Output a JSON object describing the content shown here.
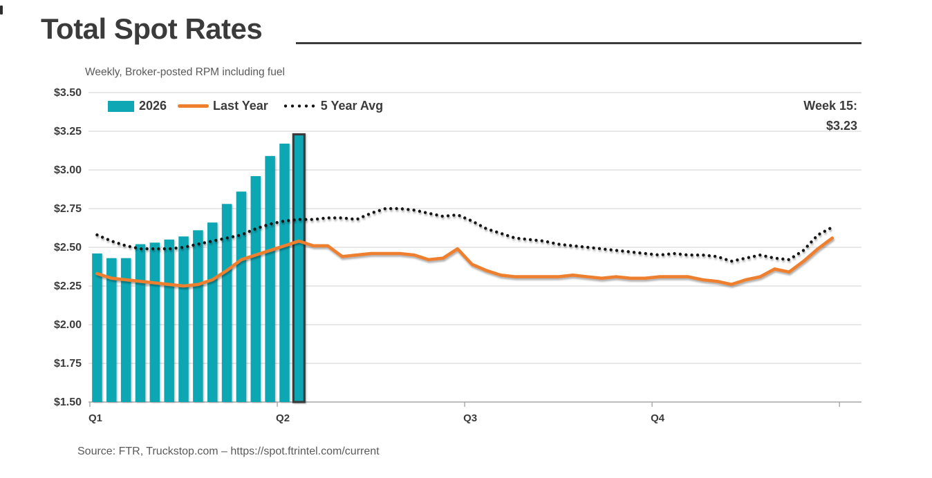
{
  "header": {
    "title": "Total Spot Rates",
    "subtitle": "Weekly, Broker-posted RPM including fuel"
  },
  "legend": {
    "items": [
      {
        "label": "2026",
        "swatch": "bar-swatch"
      },
      {
        "label": "Last Year",
        "swatch": "line-swatch"
      },
      {
        "label": "5 Year Avg",
        "swatch": "dotted-swatch"
      }
    ]
  },
  "annotation": {
    "line1": "Week 15:",
    "line2": "$3.23"
  },
  "source": "Source: FTR, Truckstop.com – https://spot.ftrintel.com/current",
  "colors": {
    "bars_2026": "#0fa7b4",
    "last_year_line": "#ee7f2d",
    "five_year_avg_dots": "#141414",
    "highlight_outline": "#3b3b3b",
    "gridline": "#d9d9d9",
    "axis_line": "#a6a6a6",
    "title_text": "#3b3b3b",
    "muted_text": "#595959"
  },
  "chart_data": {
    "type": "combo",
    "title": "Total Spot Rates",
    "subtitle": "Weekly, Broker-posted RPM including fuel",
    "x_unit": "week of year",
    "n_weeks": 52,
    "ylim": [
      1.5,
      3.5
    ],
    "y_tick_step": 0.25,
    "y_ticks": [
      "$3.50",
      "$3.25",
      "$3.00",
      "$2.75",
      "$2.50",
      "$2.25",
      "$2.00",
      "$1.75",
      "$1.50"
    ],
    "x_ticks": [
      {
        "week": 1,
        "label": "Q1"
      },
      {
        "week": 14,
        "label": "Q2"
      },
      {
        "week": 27,
        "label": "Q3"
      },
      {
        "week": 40,
        "label": "Q4"
      },
      {
        "week": 53,
        "label": ""
      }
    ],
    "grid": true,
    "legend_position": "top-left-inside",
    "series": [
      {
        "name": "2026",
        "type": "bar",
        "color": "#0fa7b4",
        "start_week": 1,
        "highlight_week": 15,
        "values": [
          2.46,
          2.43,
          2.43,
          2.52,
          2.53,
          2.55,
          2.57,
          2.61,
          2.66,
          2.78,
          2.86,
          2.96,
          3.09,
          3.17,
          3.23
        ]
      },
      {
        "name": "Last Year",
        "type": "line",
        "color": "#ee7f2d",
        "start_week": 1,
        "values": [
          2.33,
          2.3,
          2.29,
          2.28,
          2.27,
          2.26,
          2.25,
          2.26,
          2.29,
          2.35,
          2.42,
          2.45,
          2.48,
          2.51,
          2.54,
          2.51,
          2.51,
          2.44,
          2.45,
          2.46,
          2.46,
          2.46,
          2.45,
          2.42,
          2.43,
          2.49,
          2.39,
          2.35,
          2.32,
          2.31,
          2.31,
          2.31,
          2.31,
          2.32,
          2.31,
          2.3,
          2.31,
          2.3,
          2.3,
          2.31,
          2.31,
          2.31,
          2.29,
          2.28,
          2.26,
          2.29,
          2.31,
          2.36,
          2.34,
          2.41,
          2.49,
          2.56
        ]
      },
      {
        "name": "5 Year Avg",
        "type": "dotted",
        "color": "#141414",
        "start_week": 1,
        "values": [
          2.58,
          2.54,
          2.51,
          2.49,
          2.49,
          2.49,
          2.5,
          2.52,
          2.54,
          2.56,
          2.58,
          2.62,
          2.65,
          2.67,
          2.68,
          2.68,
          2.69,
          2.69,
          2.68,
          2.72,
          2.75,
          2.75,
          2.74,
          2.72,
          2.7,
          2.71,
          2.67,
          2.62,
          2.59,
          2.56,
          2.55,
          2.54,
          2.52,
          2.51,
          2.5,
          2.49,
          2.48,
          2.47,
          2.46,
          2.45,
          2.46,
          2.45,
          2.45,
          2.44,
          2.41,
          2.43,
          2.45,
          2.43,
          2.42,
          2.48,
          2.58,
          2.63
        ]
      }
    ],
    "callout": {
      "text": "Week 15:",
      "value": "$3.23",
      "week": 15,
      "value_num": 3.23
    }
  }
}
